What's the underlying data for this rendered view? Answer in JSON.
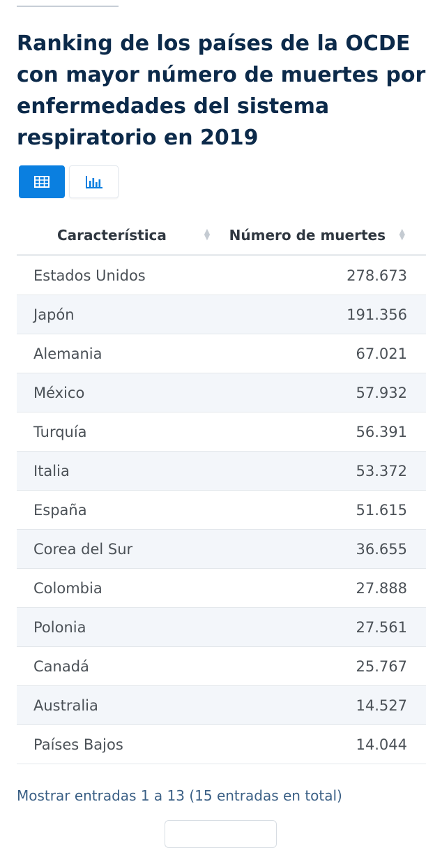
{
  "title": "Ranking de los países de la OCDE con mayor número de muertes por enfermedades del sistema respiratorio en 2019",
  "view_toggle": {
    "table_icon": "table-icon",
    "chart_icon": "bar-chart-icon",
    "active": "table"
  },
  "colors": {
    "title": "#0c2a4a",
    "accent": "#0a7fe0",
    "footer_text": "#3a5f85",
    "row_alt": "#f3f6fa"
  },
  "table": {
    "headers": [
      "Característica",
      "Número de muertes"
    ],
    "rows": [
      {
        "country": "Estados Unidos",
        "deaths": "278.673"
      },
      {
        "country": "Japón",
        "deaths": "191.356"
      },
      {
        "country": "Alemania",
        "deaths": "67.021"
      },
      {
        "country": "México",
        "deaths": "57.932"
      },
      {
        "country": "Turquía",
        "deaths": "56.391"
      },
      {
        "country": "Italia",
        "deaths": "53.372"
      },
      {
        "country": "España",
        "deaths": "51.615"
      },
      {
        "country": "Corea del Sur",
        "deaths": "36.655"
      },
      {
        "country": "Colombia",
        "deaths": "27.888"
      },
      {
        "country": "Polonia",
        "deaths": "27.561"
      },
      {
        "country": "Canadá",
        "deaths": "25.767"
      },
      {
        "country": "Australia",
        "deaths": "14.527"
      },
      {
        "country": "Países Bajos",
        "deaths": "14.044"
      }
    ]
  },
  "footer": {
    "entries_text": "Mostrar entradas 1 a 13 (15 entradas en total)"
  }
}
